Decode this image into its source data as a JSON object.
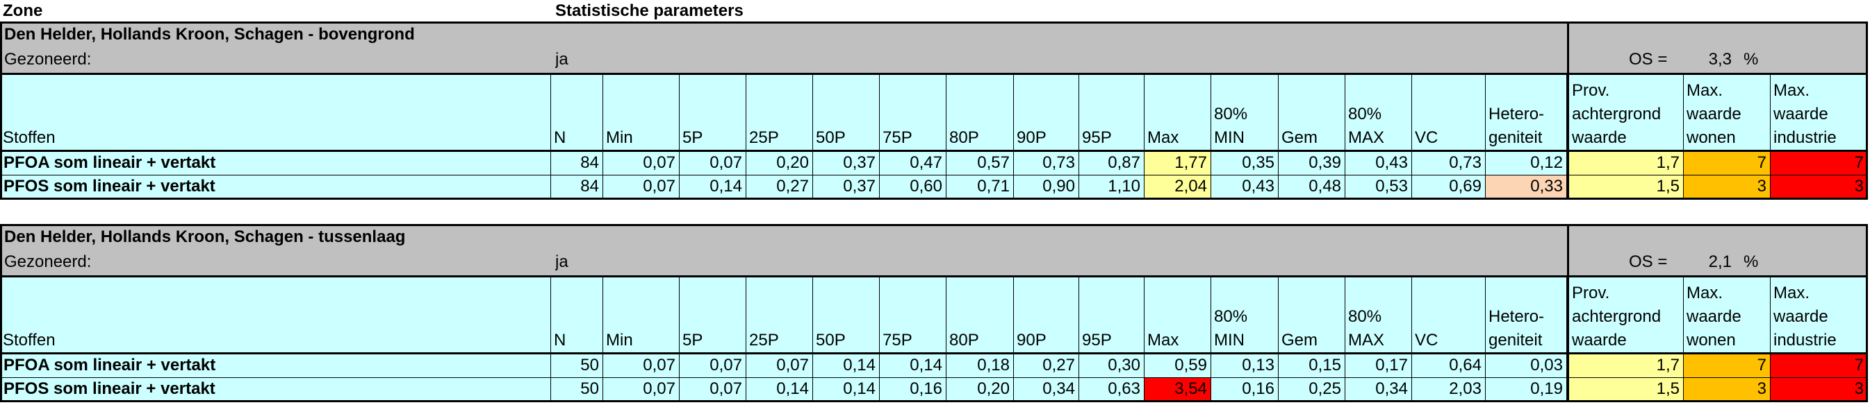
{
  "header": {
    "zone": "Zone",
    "parameters": "Statistische parameters"
  },
  "blocks": [
    {
      "title": "Den Helder, Hollands Kroon, Schagen - bovengrond",
      "zoned_label": "Gezoneerd:",
      "zoned": "ja",
      "os_label": "OS =",
      "os_value": "3,3",
      "os_unit": "%",
      "columns": [
        "Stoffen",
        "N",
        "Min",
        "5P",
        "25P",
        "50P",
        "75P",
        "80P",
        "90P",
        "95P",
        "Max",
        "80%\nMIN",
        "Gem",
        "80%\nMAX",
        "VC",
        "Hetero-\ngeniteit",
        "Prov.\nachtergrond\nwaarde",
        "Max.\nwaarde\nwonen",
        "Max.\nwaarde\nindustrie"
      ],
      "rows": [
        {
          "cells": [
            "PFOA som lineair + vertakt",
            "84",
            "0,07",
            "0,07",
            "0,20",
            "0,37",
            "0,47",
            "0,57",
            "0,73",
            "0,87",
            "1,77",
            "0,35",
            "0,39",
            "0,43",
            "0,73",
            "0,12",
            "1,7",
            "7",
            "7"
          ],
          "colors": [
            null,
            null,
            null,
            null,
            null,
            null,
            null,
            null,
            null,
            null,
            "#ffff99",
            null,
            null,
            null,
            null,
            null,
            "#ffff99",
            "#ffc000",
            "#ff0000"
          ]
        },
        {
          "cells": [
            "PFOS som lineair + vertakt",
            "84",
            "0,07",
            "0,14",
            "0,27",
            "0,37",
            "0,60",
            "0,71",
            "0,90",
            "1,10",
            "2,04",
            "0,43",
            "0,48",
            "0,53",
            "0,69",
            "0,33",
            "1,5",
            "3",
            "3"
          ],
          "colors": [
            null,
            null,
            null,
            null,
            null,
            null,
            null,
            null,
            null,
            null,
            "#ffff99",
            null,
            null,
            null,
            null,
            "#fcd5b4",
            "#ffff99",
            "#ffc000",
            "#ff0000"
          ]
        }
      ]
    },
    {
      "title": "Den Helder, Hollands Kroon, Schagen - tussenlaag",
      "zoned_label": "Gezoneerd:",
      "zoned": "ja",
      "os_label": "OS =",
      "os_value": "2,1",
      "os_unit": "%",
      "columns": [
        "Stoffen",
        "N",
        "Min",
        "5P",
        "25P",
        "50P",
        "75P",
        "80P",
        "90P",
        "95P",
        "Max",
        "80%\nMIN",
        "Gem",
        "80%\nMAX",
        "VC",
        "Hetero-\ngeniteit",
        "Prov.\nachtergrond\nwaarde",
        "Max.\nwaarde\nwonen",
        "Max.\nwaarde\nindustrie"
      ],
      "rows": [
        {
          "cells": [
            "PFOA som lineair + vertakt",
            "50",
            "0,07",
            "0,07",
            "0,07",
            "0,14",
            "0,14",
            "0,18",
            "0,27",
            "0,30",
            "0,59",
            "0,13",
            "0,15",
            "0,17",
            "0,64",
            "0,03",
            "1,7",
            "7",
            "7"
          ],
          "colors": [
            null,
            null,
            null,
            null,
            null,
            null,
            null,
            null,
            null,
            null,
            null,
            null,
            null,
            null,
            null,
            null,
            "#ffff99",
            "#ffc000",
            "#ff0000"
          ]
        },
        {
          "cells": [
            "PFOS som lineair + vertakt",
            "50",
            "0,07",
            "0,07",
            "0,14",
            "0,14",
            "0,16",
            "0,20",
            "0,34",
            "0,63",
            "3,54",
            "0,16",
            "0,25",
            "0,34",
            "2,03",
            "0,19",
            "1,5",
            "3",
            "3"
          ],
          "colors": [
            null,
            null,
            null,
            null,
            null,
            null,
            null,
            null,
            null,
            null,
            "#ff0000",
            null,
            null,
            null,
            null,
            null,
            "#ffff99",
            "#ffc000",
            "#ff0000"
          ]
        }
      ]
    }
  ]
}
